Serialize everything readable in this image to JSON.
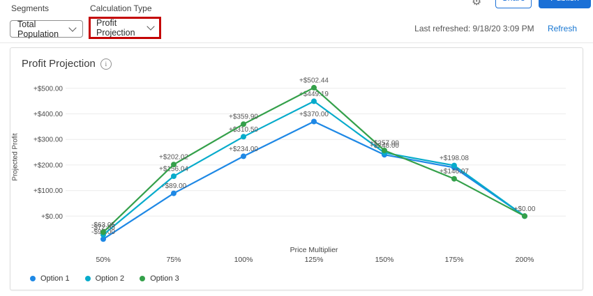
{
  "header": {
    "segments_label": "Segments",
    "segments_value": "Total Population",
    "calculation_type_label": "Calculation Type",
    "calculation_type_value": "Profit Projection",
    "share_label": "Share",
    "publish_label": "Publish",
    "last_refreshed": "Last refreshed: 9/18/20 3:09 PM",
    "refresh_label": "Refresh",
    "annotation_color": "#c40404"
  },
  "card": {
    "title": "Profit Projection"
  },
  "chart_data": {
    "type": "line",
    "title": "Profit Projection",
    "xlabel": "Price Multiplier",
    "ylabel": "Projected Profit",
    "categories": [
      "50%",
      "75%",
      "100%",
      "125%",
      "150%",
      "175%",
      "200%"
    ],
    "y_ticks": [
      "+$0.00",
      "+$100.00",
      "+$200.00",
      "+$300.00",
      "+$400.00",
      "+$500.00"
    ],
    "ylim": [
      -100,
      520
    ],
    "grid": true,
    "legend_position": "bottom-left",
    "series": [
      {
        "name": "Option 1",
        "color": "#1e88e5",
        "values": [
          -90.0,
          89.0,
          234.0,
          370.0,
          240.0,
          190.0,
          0.0
        ],
        "labels": [
          "-$90.00",
          "+$89.00",
          "+$234.00",
          "+$370.00",
          null,
          null,
          null
        ]
      },
      {
        "name": "Option 2",
        "color": "#07abcb",
        "values": [
          -72.95,
          156.04,
          310.5,
          449.19,
          248.0,
          198.08,
          0.0
        ],
        "labels": [
          "-$72.95",
          "+$156.04",
          "+$310.50",
          "+$449.19",
          "+$248.00",
          "+$198.08",
          null
        ]
      },
      {
        "name": "Option 3",
        "color": "#34a04a",
        "values": [
          -63.05,
          202.02,
          359.9,
          502.44,
          257.0,
          146.07,
          0.0
        ],
        "labels": [
          "-$63.05",
          "+$202.02",
          "+$359.90",
          "+$502.44",
          "+$257.00",
          "+$146.07",
          "+$0.00"
        ]
      }
    ]
  }
}
